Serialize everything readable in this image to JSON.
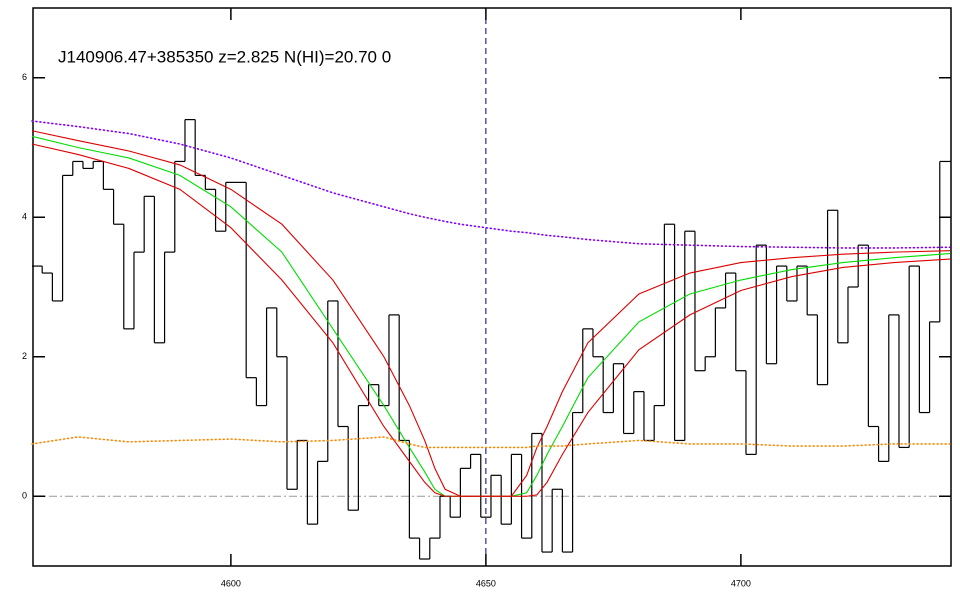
{
  "chart_data": {
    "type": "line",
    "title": "J140906.47+385350 z=2.825 N(HI)=20.70 0",
    "xlim": [
      4561.2,
      4741.2
    ],
    "ylim": [
      -1,
      7
    ],
    "xticks": [
      4600,
      4650,
      4700
    ],
    "yticks": [
      0,
      2,
      4,
      6
    ],
    "hline": 0,
    "vline": 4650,
    "series": [
      {
        "color": "#000000",
        "style": "step",
        "x": [
          4561,
          4563,
          4565,
          4567,
          4569,
          4571,
          4573,
          4575,
          4577,
          4579,
          4581,
          4583,
          4585,
          4587,
          4589,
          4591,
          4593,
          4595,
          4597,
          4599,
          4601,
          4603,
          4605,
          4607,
          4609,
          4611,
          4613,
          4615,
          4617,
          4619,
          4621,
          4623,
          4625,
          4627,
          4629,
          4631,
          4633,
          4635,
          4637,
          4639,
          4641,
          4643,
          4645,
          4647,
          4649,
          4651,
          4653,
          4655,
          4657,
          4659,
          4661,
          4663,
          4665,
          4667,
          4669,
          4671,
          4673,
          4675,
          4677,
          4679,
          4681,
          4683,
          4685,
          4687,
          4689,
          4691,
          4693,
          4695,
          4697,
          4699,
          4701,
          4703,
          4705,
          4707,
          4709,
          4711,
          4713,
          4715,
          4717,
          4719,
          4721,
          4723,
          4725,
          4727,
          4729,
          4731,
          4733,
          4735,
          4737,
          4739
        ],
        "values": [
          3.3,
          3.2,
          2.8,
          4.6,
          4.8,
          4.7,
          4.8,
          4.4,
          3.9,
          2.4,
          3.5,
          4.3,
          2.2,
          3.5,
          4.8,
          5.4,
          4.6,
          4.4,
          3.8,
          4.5,
          4.5,
          1.7,
          1.3,
          2.7,
          2.0,
          0.1,
          0.8,
          -0.4,
          0.5,
          2.8,
          1.0,
          -0.2,
          1.3,
          1.6,
          1.3,
          2.6,
          0.8,
          -0.6,
          -0.9,
          -0.6,
          0.0,
          -0.3,
          0.4,
          0.6,
          -0.3,
          0.3,
          -0.4,
          0.6,
          -0.6,
          0.9,
          -0.8,
          0.1,
          -0.8,
          1.2,
          2.4,
          2.0,
          1.2,
          1.9,
          0.9,
          1.5,
          0.8,
          1.3,
          3.9,
          0.8,
          3.8,
          1.8,
          2.0,
          2.7,
          3.2,
          1.8,
          0.6,
          3.6,
          1.9,
          3.3,
          2.8,
          3.3,
          2.6,
          1.6,
          4.1,
          2.2,
          3.0,
          3.6,
          1.0,
          0.5,
          2.6,
          0.7,
          3.3,
          1.2,
          2.5,
          4.8
        ]
      },
      {
        "color": "#00dd00",
        "style": "solid",
        "x": [
          4561,
          4570,
          4580,
          4590,
          4600,
          4610,
          4620,
          4630,
          4635,
          4638,
          4640,
          4642,
          4645,
          4650,
          4655,
          4658,
          4660,
          4662,
          4665,
          4670,
          4680,
          4690,
          4700,
          4710,
          4720,
          4730,
          4741
        ],
        "values": [
          5.16,
          5.0,
          4.85,
          4.6,
          4.15,
          3.5,
          2.4,
          1.3,
          0.7,
          0.35,
          0.1,
          0,
          0,
          0,
          0,
          0.05,
          0.3,
          0.6,
          1.0,
          1.7,
          2.5,
          2.9,
          3.1,
          3.25,
          3.35,
          3.42,
          3.48
        ]
      },
      {
        "color": "#dd0000",
        "style": "solid",
        "x": [
          4561,
          4570,
          4580,
          4590,
          4600,
          4610,
          4620,
          4630,
          4635,
          4638,
          4640,
          4642,
          4645,
          4650,
          4655,
          4658,
          4660,
          4662,
          4665,
          4670,
          4680,
          4690,
          4700,
          4710,
          4720,
          4730,
          4741
        ],
        "values": [
          5.24,
          5.1,
          4.95,
          4.75,
          4.4,
          3.9,
          3.1,
          2.0,
          1.3,
          0.8,
          0.4,
          0.1,
          0,
          0,
          0,
          0.3,
          0.7,
          1.0,
          1.5,
          2.2,
          2.9,
          3.2,
          3.35,
          3.42,
          3.47,
          3.5,
          3.52
        ]
      },
      {
        "color": "#dd0000",
        "style": "solid",
        "x": [
          4561,
          4570,
          4580,
          4590,
          4600,
          4610,
          4620,
          4630,
          4635,
          4638,
          4640,
          4642,
          4645,
          4650,
          4655,
          4658,
          4660,
          4662,
          4665,
          4670,
          4680,
          4690,
          4700,
          4710,
          4720,
          4730,
          4741
        ],
        "values": [
          5.05,
          4.9,
          4.7,
          4.4,
          3.85,
          3.1,
          2.2,
          1.0,
          0.5,
          0.2,
          0.05,
          0,
          0,
          0,
          0,
          0,
          0.02,
          0.2,
          0.6,
          1.2,
          2.1,
          2.6,
          2.95,
          3.15,
          3.28,
          3.35,
          3.4
        ]
      },
      {
        "color": "#8000ff",
        "style": "dotted",
        "x": [
          4561,
          4570,
          4580,
          4590,
          4600,
          4610,
          4620,
          4630,
          4635,
          4638,
          4640,
          4642,
          4645,
          4650,
          4655,
          4658,
          4660,
          4662,
          4665,
          4670,
          4680,
          4690,
          4700,
          4710,
          4720,
          4730,
          4741
        ],
        "values": [
          5.38,
          5.3,
          5.2,
          5.05,
          4.85,
          4.6,
          4.35,
          4.15,
          4.05,
          4.0,
          3.97,
          3.94,
          3.9,
          3.85,
          3.8,
          3.78,
          3.76,
          3.74,
          3.72,
          3.68,
          3.62,
          3.6,
          3.58,
          3.57,
          3.56,
          3.56,
          3.57
        ]
      },
      {
        "color": "#ff8800",
        "style": "dotted",
        "x": [
          4561,
          4570,
          4580,
          4590,
          4600,
          4610,
          4620,
          4630,
          4635,
          4638,
          4640,
          4642,
          4645,
          4650,
          4655,
          4658,
          4660,
          4662,
          4665,
          4670,
          4680,
          4690,
          4700,
          4710,
          4720,
          4730,
          4741
        ],
        "values": [
          0.75,
          0.85,
          0.78,
          0.8,
          0.82,
          0.78,
          0.8,
          0.85,
          0.75,
          0.7,
          0.7,
          0.7,
          0.7,
          0.7,
          0.7,
          0.7,
          0.72,
          0.72,
          0.72,
          0.75,
          0.8,
          0.75,
          0.75,
          0.72,
          0.72,
          0.75,
          0.75
        ]
      }
    ]
  }
}
